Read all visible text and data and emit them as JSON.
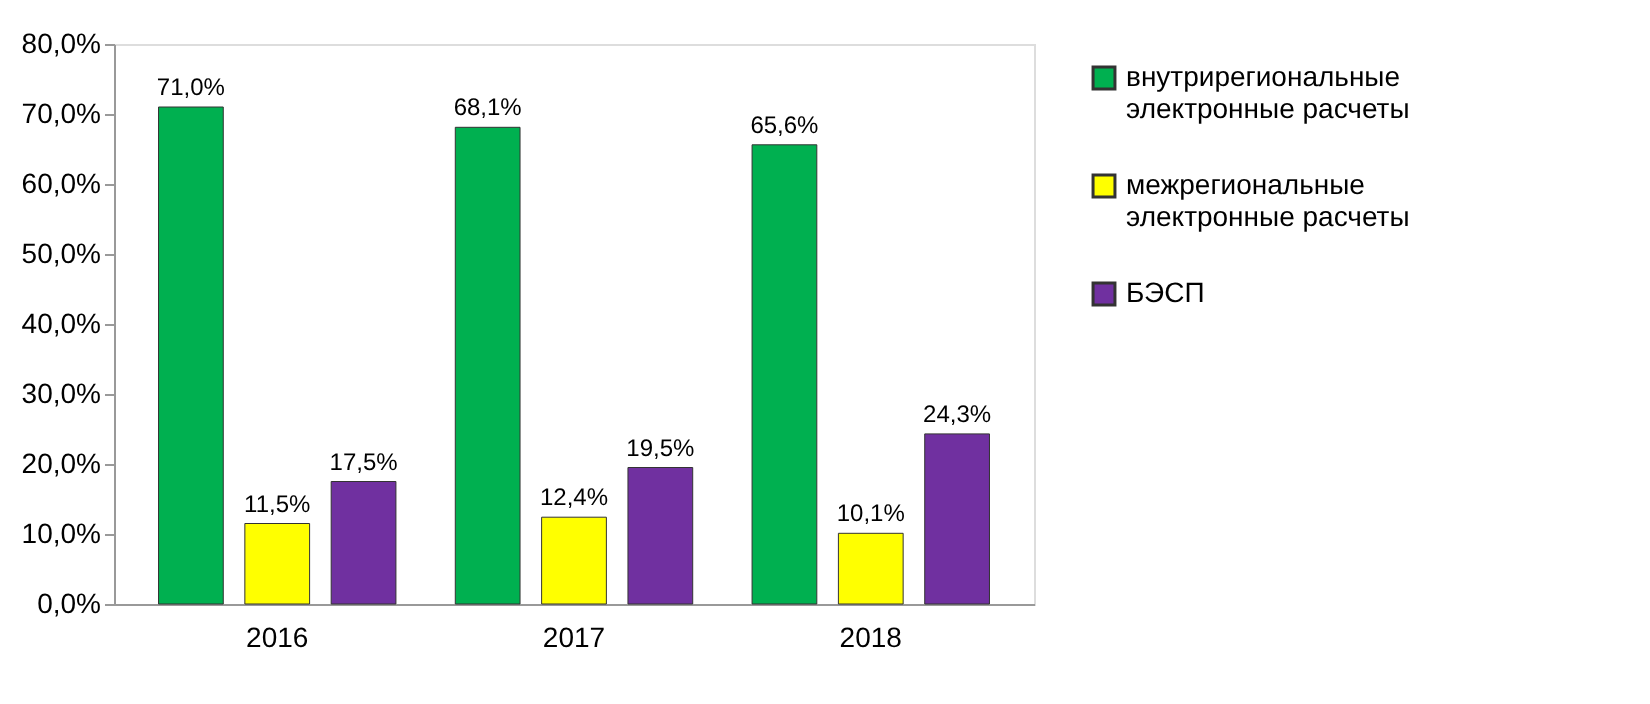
{
  "chart_data": {
    "type": "bar",
    "categories": [
      "2016",
      "2017",
      "2018"
    ],
    "series": [
      {
        "name": "внутрирегиональные электронные расчеты",
        "color": "#00b050",
        "values": [
          71.0,
          68.1,
          65.6
        ],
        "value_labels": [
          "71,0%",
          "68,1%",
          "65,6%"
        ]
      },
      {
        "name": "межрегиональные электронные расчеты",
        "color": "#ffff00",
        "values": [
          11.5,
          12.4,
          10.1
        ],
        "value_labels": [
          "11,5%",
          "12,4%",
          "10,1%"
        ]
      },
      {
        "name": "БЭСП",
        "color": "#7030a0",
        "values": [
          17.5,
          19.5,
          24.3
        ],
        "value_labels": [
          "17,5%",
          "19,5%",
          "24,3%"
        ]
      }
    ],
    "ylim": [
      0,
      80
    ],
    "yticks": [
      {
        "value": 0,
        "label": "0,0%"
      },
      {
        "value": 10,
        "label": "10,0%"
      },
      {
        "value": 20,
        "label": "20,0%"
      },
      {
        "value": 30,
        "label": "30,0%"
      },
      {
        "value": 40,
        "label": "40,0%"
      },
      {
        "value": 50,
        "label": "50,0%"
      },
      {
        "value": 60,
        "label": "60,0%"
      },
      {
        "value": 70,
        "label": "70,0%"
      },
      {
        "value": 80,
        "label": "80,0%"
      }
    ],
    "grid": false,
    "legend": "right"
  }
}
